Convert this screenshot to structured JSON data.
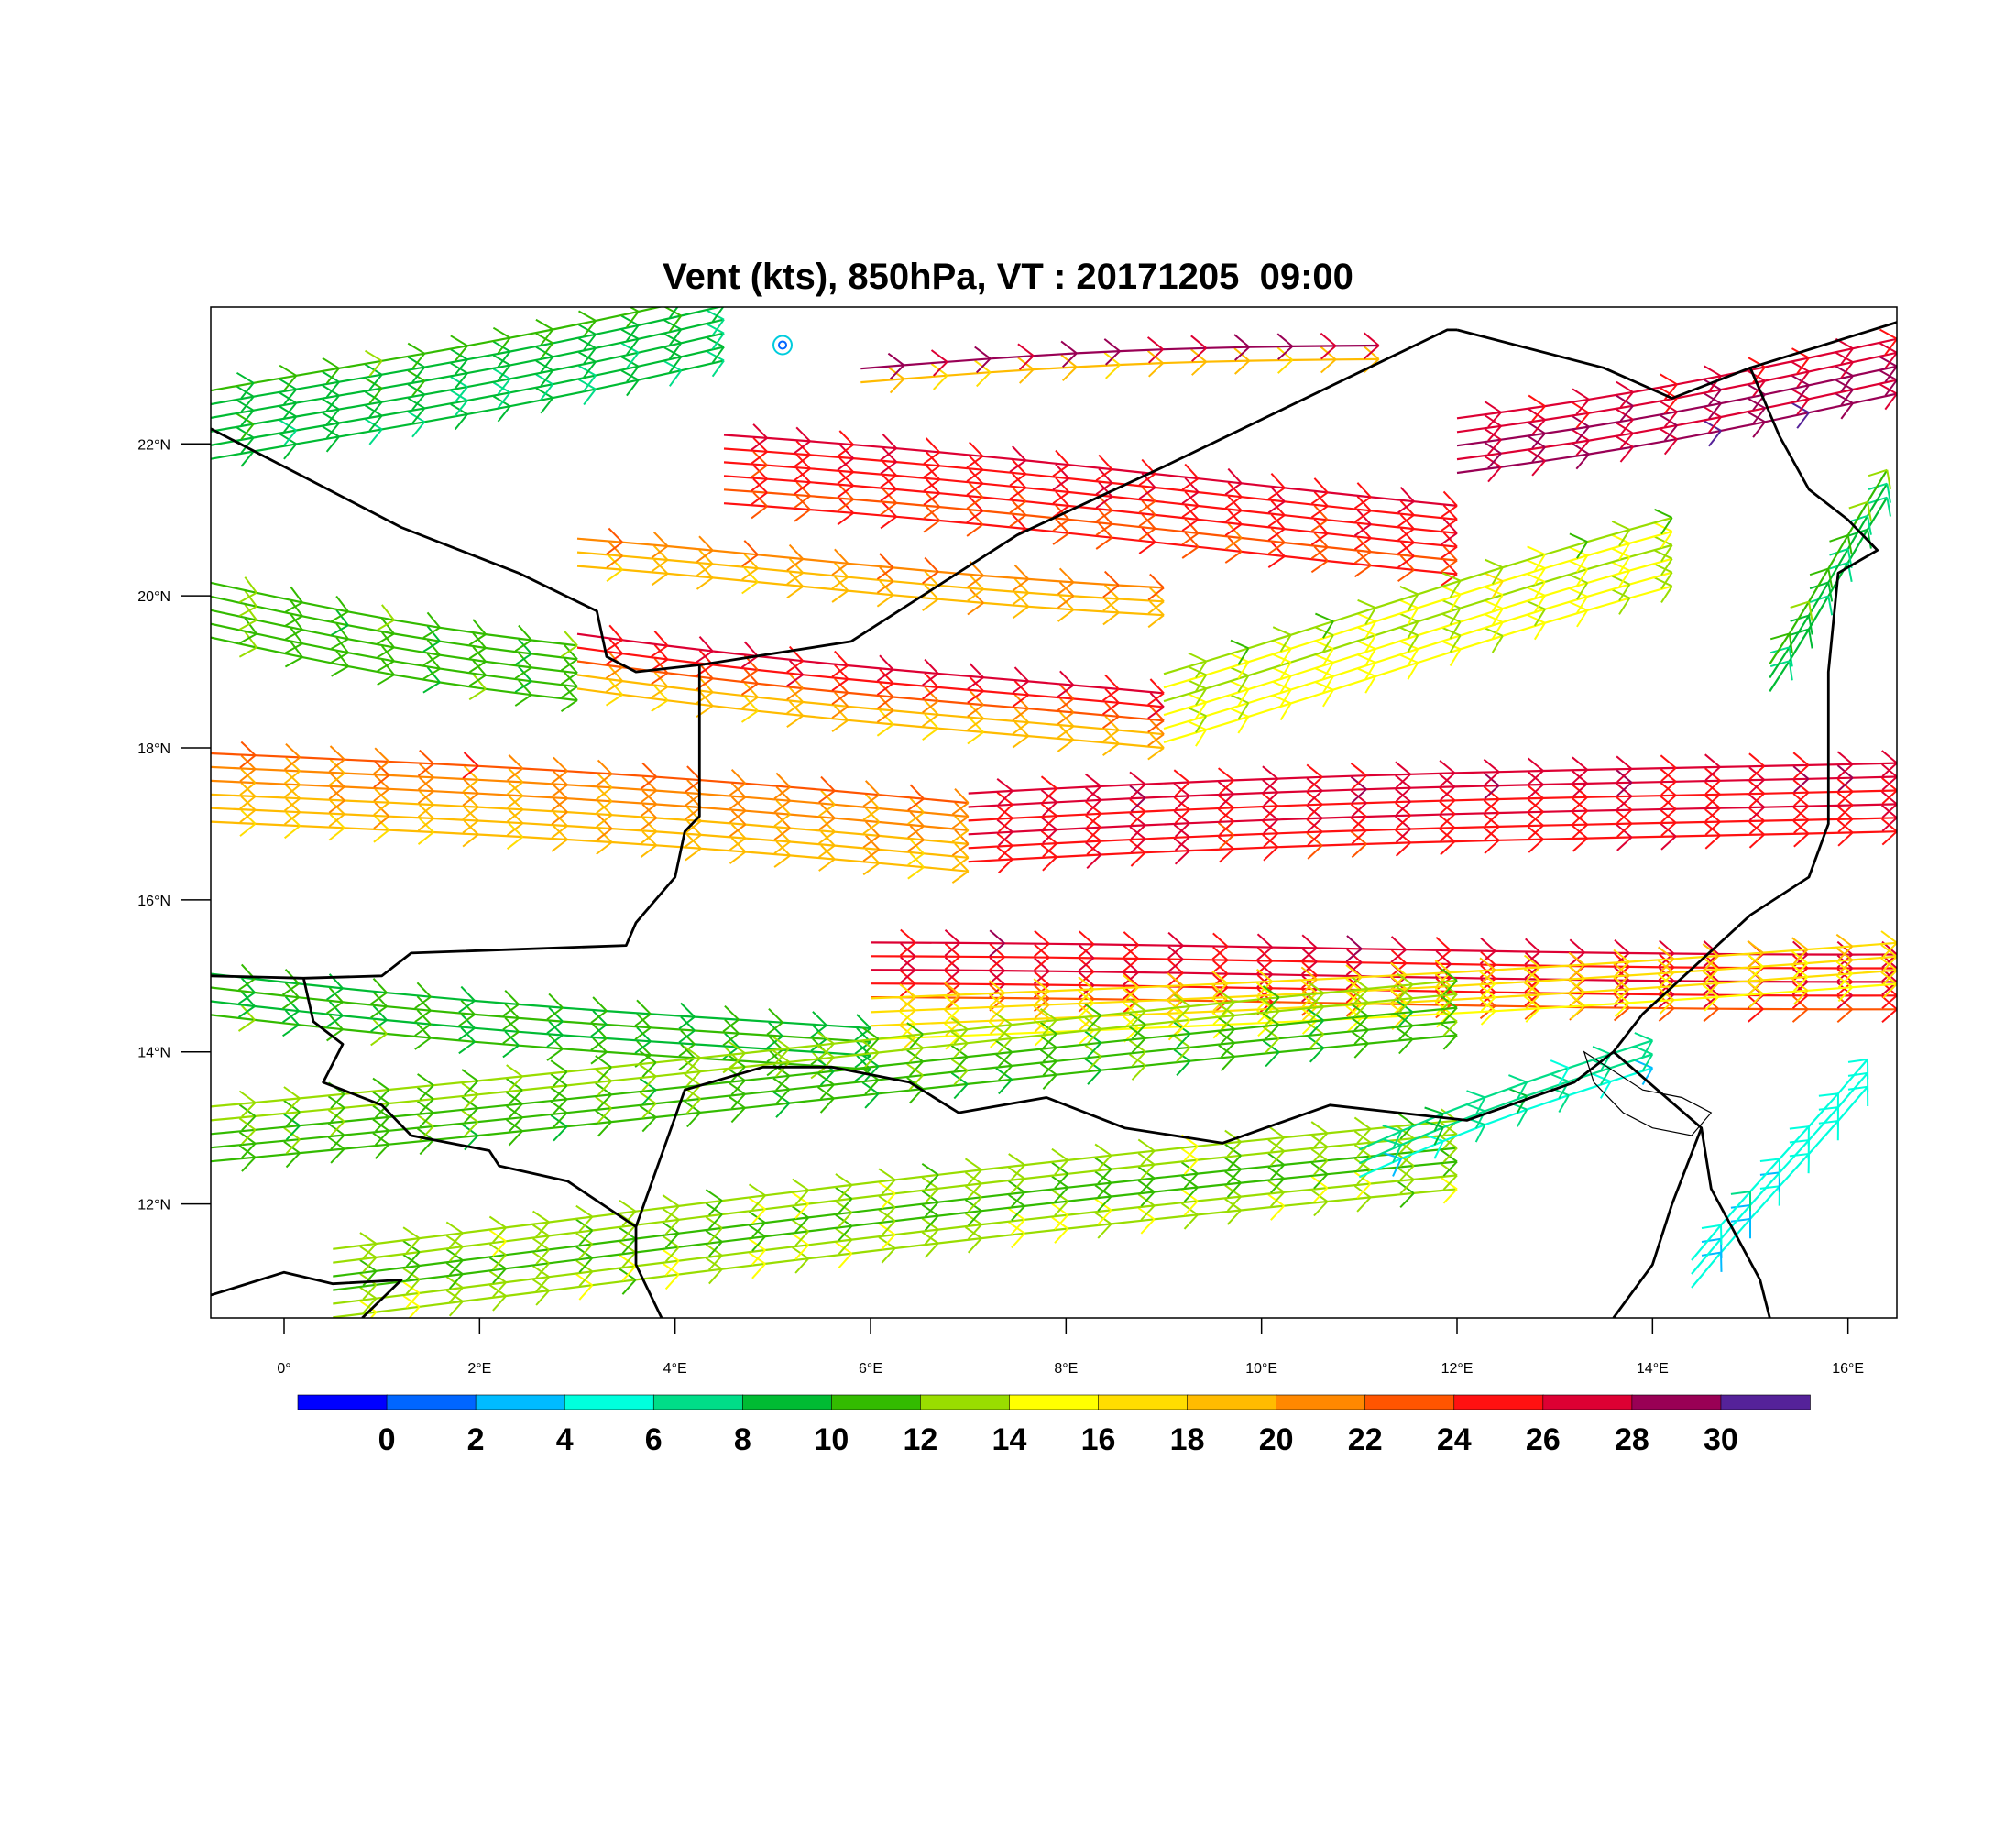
{
  "title": "Vent (kts), 850hPa, VT : 20171205  09:00",
  "map": {
    "lon_range": [
      -0.75,
      16.5
    ],
    "lat_range": [
      10.5,
      23.8
    ],
    "lon_ticks": [
      {
        "value": 0,
        "label": "0°"
      },
      {
        "value": 2,
        "label": "2°E"
      },
      {
        "value": 4,
        "label": "4°E"
      },
      {
        "value": 6,
        "label": "6°E"
      },
      {
        "value": 8,
        "label": "8°E"
      },
      {
        "value": 10,
        "label": "10°E"
      },
      {
        "value": 12,
        "label": "12°E"
      },
      {
        "value": 14,
        "label": "14°E"
      },
      {
        "value": 16,
        "label": "16°E"
      }
    ],
    "lat_ticks": [
      {
        "value": 12,
        "label": "12°N"
      },
      {
        "value": 14,
        "label": "14°N"
      },
      {
        "value": 16,
        "label": "16°N"
      },
      {
        "value": 18,
        "label": "18°N"
      },
      {
        "value": 20,
        "label": "20°N"
      },
      {
        "value": 22,
        "label": "22°N"
      }
    ],
    "borders": [
      [
        [
          -0.75,
          22.2
        ],
        [
          1.2,
          20.9
        ],
        [
          1.8,
          20.6
        ],
        [
          2.4,
          20.3
        ],
        [
          3.2,
          19.8
        ],
        [
          3.3,
          19.2
        ],
        [
          3.6,
          19.0
        ],
        [
          4.3,
          19.1
        ],
        [
          5.8,
          19.4
        ],
        [
          7.5,
          20.8
        ],
        [
          9.0,
          21.7
        ],
        [
          11.9,
          23.5
        ],
        [
          12.0,
          23.5
        ]
      ],
      [
        [
          4.25,
          19.1
        ],
        [
          4.25,
          17.1
        ],
        [
          4.1,
          16.9
        ],
        [
          4.0,
          16.3
        ],
        [
          3.6,
          15.7
        ],
        [
          3.5,
          15.4
        ],
        [
          1.3,
          15.3
        ],
        [
          1.0,
          15.0
        ],
        [
          0.2,
          14.97
        ],
        [
          -0.75,
          15.0
        ]
      ],
      [
        [
          0.2,
          14.97
        ],
        [
          0.3,
          14.4
        ],
        [
          0.6,
          14.1
        ],
        [
          0.4,
          13.6
        ],
        [
          1.0,
          13.3
        ],
        [
          1.3,
          12.9
        ],
        [
          2.1,
          12.7
        ],
        [
          2.2,
          12.5
        ],
        [
          2.9,
          12.3
        ],
        [
          3.6,
          11.7
        ],
        [
          3.6,
          11.2
        ],
        [
          3.9,
          10.4
        ]
      ],
      [
        [
          3.6,
          11.7
        ],
        [
          4.1,
          13.5
        ],
        [
          4.9,
          13.8
        ],
        [
          5.6,
          13.8
        ],
        [
          6.4,
          13.6
        ],
        [
          6.9,
          13.2
        ],
        [
          7.8,
          13.4
        ],
        [
          8.6,
          13.0
        ],
        [
          9.6,
          12.8
        ],
        [
          10.7,
          13.3
        ],
        [
          12.1,
          13.1
        ],
        [
          13.2,
          13.6
        ],
        [
          13.6,
          14.0
        ],
        [
          13.9,
          14.5
        ],
        [
          15.0,
          15.8
        ],
        [
          15.6,
          16.3
        ],
        [
          15.8,
          17.0
        ],
        [
          15.8,
          19.0
        ],
        [
          15.9,
          20.3
        ],
        [
          16.3,
          20.6
        ],
        [
          16.0,
          21.0
        ],
        [
          15.6,
          21.4
        ],
        [
          15.3,
          22.1
        ],
        [
          15.0,
          23.0
        ],
        [
          16.5,
          23.6
        ]
      ],
      [
        [
          13.6,
          14.0
        ],
        [
          14.5,
          13.0
        ],
        [
          14.6,
          12.2
        ],
        [
          15.1,
          11.0
        ],
        [
          15.2,
          10.5
        ]
      ],
      [
        [
          14.5,
          13.0
        ],
        [
          14.2,
          12.0
        ],
        [
          14.0,
          11.2
        ],
        [
          13.6,
          10.5
        ]
      ],
      [
        [
          -0.75,
          10.8
        ],
        [
          0.0,
          11.1
        ],
        [
          0.5,
          10.95
        ],
        [
          1.2,
          11.0
        ],
        [
          0.8,
          10.5
        ]
      ],
      [
        [
          12.0,
          23.5
        ],
        [
          13.5,
          23.0
        ],
        [
          14.2,
          22.6
        ],
        [
          15.0,
          23.0
        ]
      ]
    ],
    "lake_chad": [
      [
        13.3,
        14.0
      ],
      [
        13.9,
        13.5
      ],
      [
        14.3,
        13.4
      ],
      [
        14.6,
        13.2
      ],
      [
        14.4,
        12.9
      ],
      [
        14.0,
        13.0
      ],
      [
        13.7,
        13.2
      ],
      [
        13.4,
        13.6
      ]
    ],
    "wind_field": {
      "units": "kts",
      "description_free": true,
      "bands": [
        {
          "lat_start": 22.9,
          "lat_end": 23.2,
          "lon_start": 5.9,
          "lon_end": 11.2,
          "speed_start": 14,
          "speed_end": 29,
          "dir": 250,
          "rows": 2
        },
        {
          "lat_start": 21.6,
          "lat_end": 20.8,
          "lon_start": 4.5,
          "lon_end": 12.0,
          "speed_start": 22,
          "speed_end": 26,
          "dir": 260,
          "rows": 6
        },
        {
          "lat_start": 20.5,
          "lat_end": 20.0,
          "lon_start": 3.0,
          "lon_end": 9.0,
          "speed_start": 18,
          "speed_end": 22,
          "dir": 260,
          "rows": 3
        },
        {
          "lat_start": 19.8,
          "lat_end": 19.0,
          "lon_start": -0.75,
          "lon_end": 3.0,
          "speed_start": 10,
          "speed_end": 12,
          "dir": 270,
          "rows": 5
        },
        {
          "lat_start": 19.2,
          "lat_end": 18.3,
          "lon_start": 3.0,
          "lon_end": 9.0,
          "speed_start": 15,
          "speed_end": 26,
          "dir": 265,
          "rows": 5
        },
        {
          "lat_start": 18.6,
          "lat_end": 20.5,
          "lon_start": 9.0,
          "lon_end": 14.2,
          "speed_start": 16,
          "speed_end": 14,
          "dir": 245,
          "rows": 6
        },
        {
          "lat_start": 17.5,
          "lat_end": 16.8,
          "lon_start": -0.75,
          "lon_end": 7.0,
          "speed_start": 18,
          "speed_end": 22,
          "dir": 270,
          "rows": 6
        },
        {
          "lat_start": 16.9,
          "lat_end": 17.4,
          "lon_start": 7.0,
          "lon_end": 16.5,
          "speed_start": 24,
          "speed_end": 27,
          "dir": 265,
          "rows": 6
        },
        {
          "lat_start": 15.0,
          "lat_end": 15.0,
          "lon_start": 6.0,
          "lon_end": 16.5,
          "speed_start": 24,
          "speed_end": 26,
          "dir": 265,
          "rows": 5
        },
        {
          "lat_start": 14.4,
          "lat_end": 15.2,
          "lon_start": 6.0,
          "lon_end": 16.5,
          "speed_start": 15,
          "speed_end": 17,
          "dir": 260,
          "rows": 4
        },
        {
          "lat_start": 14.8,
          "lat_end": 14.0,
          "lon_start": -0.75,
          "lon_end": 6.0,
          "speed_start": 12,
          "speed_end": 9,
          "dir": 250,
          "rows": 4
        },
        {
          "lat_start": 13.0,
          "lat_end": 14.5,
          "lon_start": -0.75,
          "lon_end": 12.0,
          "speed_start": 10,
          "speed_end": 12,
          "dir": 245,
          "rows": 5
        },
        {
          "lat_start": 11.0,
          "lat_end": 12.6,
          "lon_start": 0.5,
          "lon_end": 12.0,
          "speed_start": 14,
          "speed_end": 12,
          "dir": 240,
          "rows": 6
        },
        {
          "lat_start": 12.5,
          "lat_end": 14.0,
          "lon_start": 11.0,
          "lon_end": 14.0,
          "speed_start": 6,
          "speed_end": 7,
          "dir": 220,
          "rows": 3
        },
        {
          "lat_start": 11.0,
          "lat_end": 13.8,
          "lon_start": 14.4,
          "lon_end": 16.2,
          "speed_start": 5,
          "speed_end": 5,
          "dir": 200,
          "rows": 3
        },
        {
          "lat_start": 22.2,
          "lat_end": 23.6,
          "lon_start": -0.75,
          "lon_end": 4.5,
          "speed_start": 8,
          "speed_end": 10,
          "dir": 280,
          "rows": 6
        },
        {
          "lat_start": 22.0,
          "lat_end": 23.0,
          "lon_start": 12.0,
          "lon_end": 16.5,
          "speed_start": 30,
          "speed_end": 27,
          "dir": 240,
          "rows": 5
        },
        {
          "lat_start": 19.0,
          "lat_end": 21.4,
          "lon_start": 15.2,
          "lon_end": 16.4,
          "speed_start": 6,
          "speed_end": 11,
          "dir": 200,
          "rows": 3
        }
      ]
    }
  },
  "colorbar": {
    "colors": [
      "#0000ff",
      "#0066ff",
      "#00bbff",
      "#00ffdd",
      "#00dd88",
      "#00bb33",
      "#33bb00",
      "#99dd00",
      "#ffff00",
      "#ffdd00",
      "#ffbb00",
      "#ff8800",
      "#ff5500",
      "#ff1111",
      "#dd0033",
      "#990055",
      "#552299"
    ],
    "labels": [
      "0",
      "2",
      "4",
      "6",
      "8",
      "10",
      "12",
      "14",
      "16",
      "18",
      "20",
      "22",
      "24",
      "26",
      "28",
      "30"
    ]
  }
}
